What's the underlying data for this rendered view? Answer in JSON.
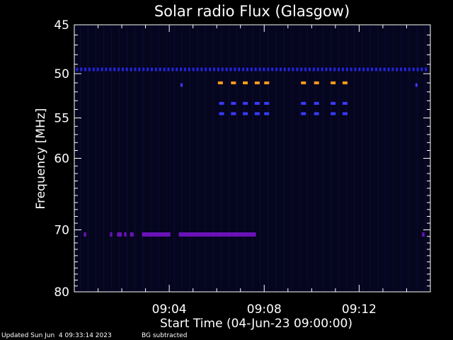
{
  "chart_data": {
    "type": "heatmap",
    "title": "Solar radio Flux (Glasgow)",
    "xlabel": "Start Time (04-Jun-23 09:00:00)",
    "ylabel": "Frequency [MHz]",
    "x_range_minutes": [
      0,
      15
    ],
    "x_ticks": [
      {
        "minute": 4,
        "label": "09:04"
      },
      {
        "minute": 8,
        "label": "09:08"
      },
      {
        "minute": 12,
        "label": "09:12"
      }
    ],
    "y_range_mhz": [
      45,
      80
    ],
    "y_ticks": [
      {
        "mhz": 45,
        "label": "45"
      },
      {
        "mhz": 50,
        "label": "50"
      },
      {
        "mhz": 55,
        "label": "55"
      },
      {
        "mhz": 60,
        "label": "60"
      },
      {
        "mhz": 70,
        "label": "70"
      },
      {
        "mhz": 80,
        "label": "80"
      }
    ],
    "background_color": "#05051e",
    "bands": [
      {
        "mhz": 49.5,
        "color": "#2424e0",
        "segments": "dotted",
        "from_minute": 0.1,
        "to_minute": 14.9
      },
      {
        "mhz": 51.0,
        "color": "#ff9a1a",
        "segments": [
          6.05,
          6.6,
          7.1,
          7.6,
          8.0,
          9.55,
          10.1,
          10.8,
          11.3
        ]
      },
      {
        "mhz": 53.3,
        "color": "#3a3aff",
        "segments": [
          6.1,
          6.6,
          7.1,
          7.6,
          8.0,
          9.55,
          10.1,
          10.8,
          11.3
        ]
      },
      {
        "mhz": 54.5,
        "color": "#3a3aff",
        "segments": [
          6.1,
          6.6,
          7.1,
          7.6,
          8.0,
          9.55,
          10.1,
          10.8,
          11.3
        ]
      },
      {
        "mhz": 70.7,
        "color": "#6a12b8",
        "runs": [
          [
            0.4,
            0.5
          ],
          [
            1.5,
            1.6
          ],
          [
            1.8,
            2.0
          ],
          [
            2.1,
            2.2
          ],
          [
            2.35,
            2.5
          ],
          [
            2.85,
            4.05
          ],
          [
            4.4,
            7.65
          ],
          [
            14.65,
            14.75
          ]
        ]
      }
    ],
    "isolated_marks": [
      {
        "minute": 4.5,
        "mhz": 51.2,
        "color": "#3a3aff"
      },
      {
        "minute": 14.4,
        "mhz": 51.2,
        "color": "#3a3aff"
      }
    ]
  },
  "footer": {
    "updated": "Updated Sun Jun  4 09:33:14 2023",
    "note": "BG subtracted"
  }
}
